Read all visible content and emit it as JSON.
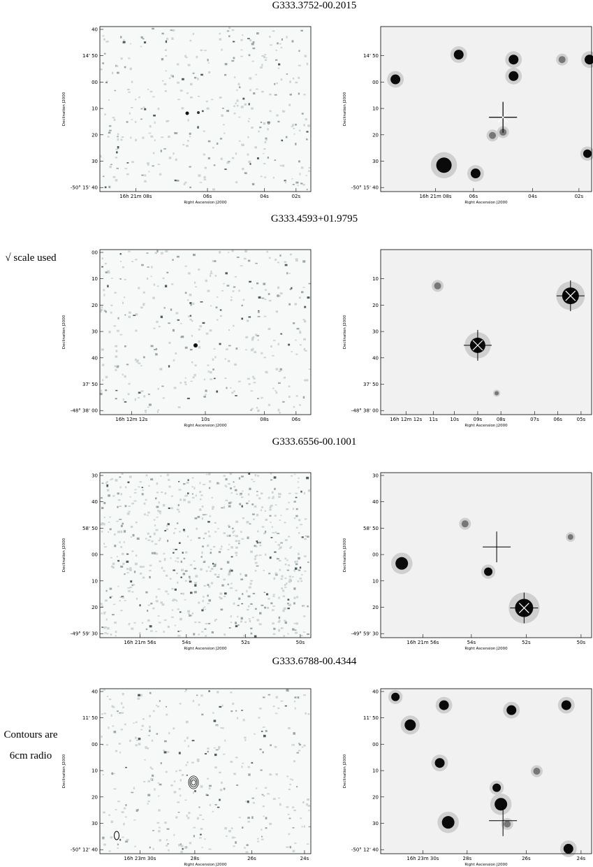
{
  "figure": {
    "rows": [
      {
        "title": "G333.3752-00.2015",
        "left": {
          "yticks": [
            "40",
            "14' 50",
            "00",
            "10",
            "20",
            "30",
            "-50° 15' 40"
          ],
          "xticks": [
            "16h 21m 08s",
            "06s",
            "04s",
            "02s"
          ],
          "xlabel": "Right Ascension J2000",
          "ylabel": "Declination J2000"
        },
        "right": {
          "yticks": [
            "14' 50",
            "00",
            "10",
            "20",
            "30",
            "-50° 15' 40"
          ],
          "xticks": [
            "16h 21m 08s",
            "06s",
            "04s",
            "02s"
          ],
          "xlabel": "Right Ascension J2000",
          "ylabel": "Declination J2000"
        }
      },
      {
        "title": "G333.4593+01.9795",
        "notes": [
          "√ scale used"
        ],
        "left": {
          "yticks": [
            "00",
            "10",
            "20",
            "30",
            "40",
            "37' 50",
            "-48° 38' 00"
          ],
          "xticks": [
            "16h 12m 12s",
            "10s",
            "08s",
            "06s"
          ],
          "xlabel": "Right Ascension J2000",
          "ylabel": "Declination J2000"
        },
        "right": {
          "yticks": [
            "10",
            "20",
            "30",
            "40",
            "37' 50",
            "-48° 38' 00"
          ],
          "xticks": [
            "16h 12m 12s",
            "11s",
            "10s",
            "09s",
            "08s",
            "07s",
            "06s",
            "05s"
          ],
          "xlabel": "Right Ascension J2000",
          "ylabel": "Declination J2000"
        }
      },
      {
        "title": "G333.6556-00.1001",
        "left": {
          "yticks": [
            "30",
            "40",
            "58' 50",
            "00",
            "10",
            "20",
            "-49° 59' 30"
          ],
          "xticks": [
            "16h 21m 56s",
            "54s",
            "52s",
            "50s"
          ],
          "xlabel": "Right Ascension J2000",
          "ylabel": "Declination J2000"
        },
        "right": {
          "yticks": [
            "30",
            "40",
            "58' 50",
            "00",
            "10",
            "20",
            "-49° 59' 30"
          ],
          "xticks": [
            "16h 21m 56s",
            "54s",
            "52s",
            "50s"
          ],
          "xlabel": "Right Ascension J2000",
          "ylabel": "Declination J2000"
        }
      },
      {
        "title": "G333.6788-00.4344",
        "notes": [
          "Contours are",
          "6cm radio"
        ],
        "left": {
          "yticks": [
            "40",
            "11' 50",
            "00",
            "10",
            "20",
            "30",
            "-50° 12' 40"
          ],
          "xticks": [
            "16h 23m 30s",
            "28s",
            "26s",
            "24s"
          ],
          "xlabel": "Right Ascension J2000",
          "ylabel": "Declination J2000"
        },
        "right": {
          "yticks": [
            "40",
            "11' 50",
            "00",
            "10",
            "20",
            "30",
            "-50° 12' 40"
          ],
          "xticks": [
            "16h 23m 30s",
            "28s",
            "26s",
            "24s"
          ],
          "xlabel": "Right Ascension J2000",
          "ylabel": "Declination J2000"
        }
      }
    ]
  }
}
